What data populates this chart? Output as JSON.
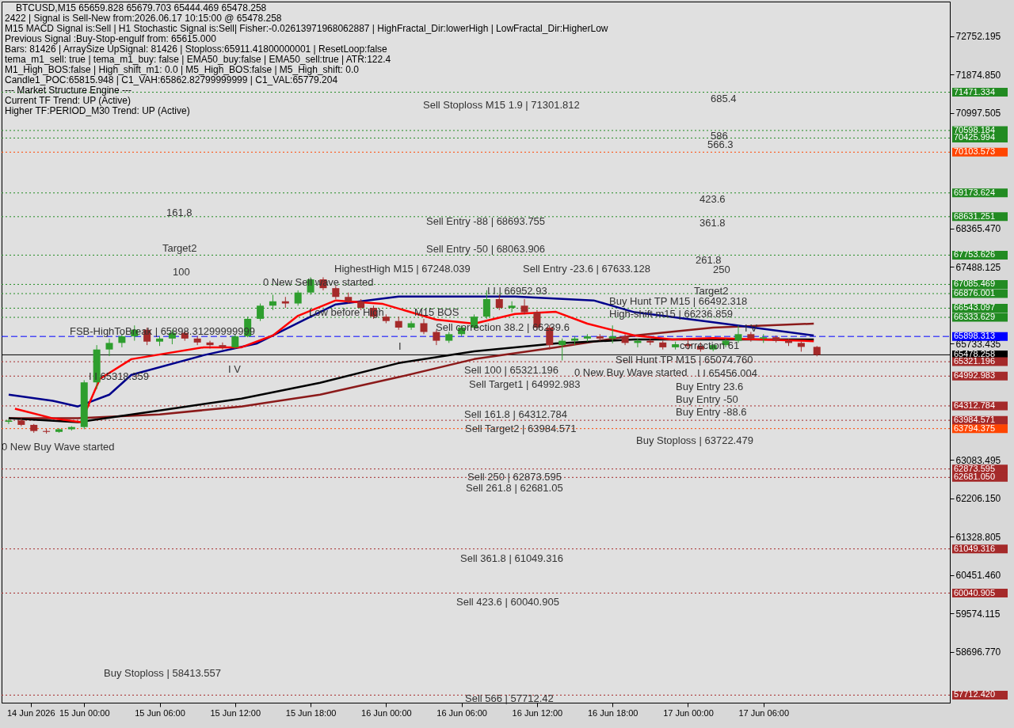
{
  "chart_data": {
    "type": "candlestick",
    "title": "BTCUSD,M15  65659.828 65679.703 65444.469 65478.258",
    "annotations": [
      "2422 | Signal is Sell-New from:2026.06.17 10:15:00 @ 65478.258",
      "M15 MACD Signal is:Sell | H1 Stochastic Signal is:Sell| Fisher:-0.02613971968062887 | HighFractal_Dir:lowerHigh | LowFractal_Dir:HigherLow",
      "Previous Signal :Buy-Stop-engulf from: 65615.000",
      "Bars: 81426 | ArraySize UpSignal: 81426 | Stoploss:65911.41800000001 | ResetLoop:false",
      "tema_m1_sell: true | tema_m1_buy: false | EMA50_buy:false | EMA50_sell:true | ATR:122.4",
      "M1_High_BOS:false | High_shift_m1: 0.0 | M5_High_BOS:false | M5_High_shift: 0.0",
      "Candle1_POC:65815.948 | C1_VAH:65862.82799999999 | C1_VAL:65779.204",
      "--- Market Structure Engine ---",
      "Current TF Trend: UP (Active)",
      "Higher TF:PERIOD_M30 Trend: UP (Active)",
      "Sell Stoploss M15 1.9 | 71301.812",
      "685.4",
      "586",
      "566.3",
      "423.6",
      "361.8",
      "261.8",
      "250",
      "Target2",
      "161.8",
      "Target2",
      "100",
      "Sell Entry -88 | 68693.755",
      "Sell Entry -50 | 68063.906",
      "HighestHigh  M15 | 67248.039",
      "Sell Entry -23.6 | 67633.128",
      "0 New Sell wave started",
      "I I | 66952.93",
      "Low before High",
      "M15 BOS",
      "Sell correction 38.2 | 66239.6",
      "FSB-HighToBreak | 65898.31299999999",
      "I I 65318.359",
      "I V",
      "I",
      "I V",
      "0 New Buy Wave started",
      "Buy Hunt TP M15 | 66492.318",
      "High-shift m15 | 66236.859",
      "correction 61",
      "Sell 100 | 65321.196",
      "0 New Buy Wave started",
      "Sell Target1 | 64992.983",
      "Sell Hunt TP M15 | 65074.760",
      "I I 65456.004",
      "Buy Entry 23.6",
      "Buy Entry -50",
      "Buy Entry -88.6",
      "Buy Stoploss | 63722.479",
      "Sell 161.8 | 64312.784",
      "Sell Target2 | 63984.571",
      "Sell 250 | 62873.595",
      "Sell 261.8 | 62681.05",
      "Sell 361.8 | 61049.316",
      "Sell 423.6 | 60040.905",
      "Buy Stoploss | 58413.557",
      "Sell 566 | 57712.42"
    ],
    "xlim": [
      "2026-06-14T17:45",
      "2026-06-17T20:30"
    ],
    "xticks": [
      {
        "value": "2026-06-14T19:45",
        "label": "14 Jun 2026"
      },
      {
        "value": "2026-06-15T00:00",
        "label": "15 Jun 00:00"
      },
      {
        "value": "2026-06-15T06:00",
        "label": "15 Jun 06:00"
      },
      {
        "value": "2026-06-15T12:00",
        "label": "15 Jun 12:00"
      },
      {
        "value": "2026-06-15T18:00",
        "label": "15 Jun 18:00"
      },
      {
        "value": "2026-06-16T00:00",
        "label": "16 Jun 00:00"
      },
      {
        "value": "2026-06-16T06:00",
        "label": "16 Jun 06:00"
      },
      {
        "value": "2026-06-16T12:00",
        "label": "16 Jun 12:00"
      },
      {
        "value": "2026-06-16T18:00",
        "label": "16 Jun 18:00"
      },
      {
        "value": "2026-06-17T00:00",
        "label": "17 Jun 00:00"
      },
      {
        "value": "2026-06-17T06:00",
        "label": "17 Jun 06:00"
      }
    ],
    "ylim": [
      57540,
      73540
    ],
    "yticks": [
      {
        "value": 72752.195,
        "label": "72752.195"
      },
      {
        "value": 71874.85,
        "label": "71874.850"
      },
      {
        "value": 70997.505,
        "label": "70997.505"
      },
      {
        "value": 68365.47,
        "label": "68365.470"
      },
      {
        "value": 67488.125,
        "label": "67488.125"
      },
      {
        "value": 65733.435,
        "label": "65733.435"
      },
      {
        "value": 63083.495,
        "label": "63083.495"
      },
      {
        "value": 62206.15,
        "label": "62206.150"
      },
      {
        "value": 61328.805,
        "label": "61328.805"
      },
      {
        "value": 60451.46,
        "label": "60451.460"
      },
      {
        "value": 59574.115,
        "label": "59574.115"
      },
      {
        "value": 58696.77,
        "label": "58696.770"
      }
    ],
    "grid": false,
    "ref_lines": [
      {
        "axis": "y",
        "value": 71471.334,
        "label": "71471.334",
        "color": "#228b22",
        "line_style": "dotted"
      },
      {
        "axis": "y",
        "value": 70598.184,
        "label": "70598.184",
        "color": "#228b22",
        "line_style": "dotted"
      },
      {
        "axis": "y",
        "value": 70425.994,
        "label": "70425.994",
        "color": "#228b22",
        "line_style": "dotted"
      },
      {
        "axis": "y",
        "value": 70103.573,
        "label": "70103.573",
        "color": "#ff4500",
        "line_style": "dotted"
      },
      {
        "axis": "y",
        "value": 69173.624,
        "label": "69173.624",
        "color": "#228b22",
        "line_style": "dotted"
      },
      {
        "axis": "y",
        "value": 68631.251,
        "label": "68631.251",
        "color": "#228b22",
        "line_style": "dotted"
      },
      {
        "axis": "y",
        "value": 67753.626,
        "label": "67753.626",
        "color": "#228b22",
        "line_style": "dotted"
      },
      {
        "axis": "y",
        "value": 67085.469,
        "label": "67085.469",
        "color": "#228b22",
        "line_style": "dotted"
      },
      {
        "axis": "y",
        "value": 66876.001,
        "label": "66876.001",
        "color": "#228b22",
        "line_style": "dotted"
      },
      {
        "axis": "y",
        "value": 66543.097,
        "label": "66543.097",
        "color": "#228b22",
        "line_style": "dotted"
      },
      {
        "axis": "y",
        "value": 66333.629,
        "label": "66333.629",
        "color": "#228b22",
        "line_style": "dotted"
      },
      {
        "axis": "y",
        "value": 65898.313,
        "label": "65898.313",
        "color": "#0000ff",
        "line_style": "dashed"
      },
      {
        "axis": "y",
        "value": 65478.258,
        "label": "65478.258",
        "color": "#000000",
        "line_style": "solid"
      },
      {
        "axis": "y",
        "value": 65321.196,
        "label": "65321.196",
        "color": "#a52a2a",
        "line_style": "dotted"
      },
      {
        "axis": "y",
        "value": 64992.983,
        "label": "64992.983",
        "color": "#a52a2a",
        "line_style": "dotted"
      },
      {
        "axis": "y",
        "value": 64312.784,
        "label": "64312.784",
        "color": "#a52a2a",
        "line_style": "dotted"
      },
      {
        "axis": "y",
        "value": 63984.571,
        "label": "63984.571",
        "color": "#a52a2a",
        "line_style": "dotted"
      },
      {
        "axis": "y",
        "value": 63794.375,
        "label": "63794.375",
        "color": "#ff4500",
        "line_style": "dotted"
      },
      {
        "axis": "y",
        "value": 62873.595,
        "label": "62873.595",
        "color": "#a52a2a",
        "line_style": "dotted"
      },
      {
        "axis": "y",
        "value": 62681.05,
        "label": "62681.050",
        "color": "#a52a2a",
        "line_style": "dotted"
      },
      {
        "axis": "y",
        "value": 61049.316,
        "label": "61049.316",
        "color": "#a52a2a",
        "line_style": "dotted"
      },
      {
        "axis": "y",
        "value": 60040.905,
        "label": "60040.905",
        "color": "#a52a2a",
        "line_style": "dotted"
      },
      {
        "axis": "y",
        "value": 57712.42,
        "label": "57712.420",
        "color": "#a52a2a",
        "line_style": "dotted"
      }
    ],
    "series": [
      {
        "type": "line",
        "color": "#8b1a1a",
        "line_style": "solid",
        "x": [
          "2026-06-14T18:00",
          "2026-06-14T23:30",
          "2026-06-15T06:00",
          "2026-06-15T12:30",
          "2026-06-15T18:45",
          "2026-06-16T01:00",
          "2026-06-16T07:00",
          "2026-06-16T13:30",
          "2026-06-16T19:45",
          "2026-06-17T02:00",
          "2026-06-17T10:00"
        ],
        "values": [
          64030,
          64030,
          64120,
          64300,
          64570,
          64970,
          65380,
          65650,
          65920,
          66100,
          66190
        ]
      },
      {
        "type": "line",
        "color": "#000000",
        "line_style": "solid",
        "x": [
          "2026-06-14T18:00",
          "2026-06-14T23:30",
          "2026-06-15T06:00",
          "2026-06-15T12:30",
          "2026-06-15T18:45",
          "2026-06-16T01:00",
          "2026-06-16T07:00",
          "2026-06-16T13:30",
          "2026-06-16T19:45",
          "2026-06-17T10:00"
        ],
        "values": [
          64030,
          63940,
          64210,
          64480,
          64840,
          65290,
          65560,
          65740,
          65830,
          65830
        ]
      },
      {
        "type": "line",
        "color": "#00008b",
        "line_style": "solid",
        "x": [
          "2026-06-14T18:00",
          "2026-06-14T21:30",
          "2026-06-14T23:30",
          "2026-06-15T02:00",
          "2026-06-15T03:45",
          "2026-06-15T09:30",
          "2026-06-15T13:45",
          "2026-06-15T17:30",
          "2026-06-15T20:00",
          "2026-06-16T01:00",
          "2026-06-16T10:15",
          "2026-06-16T16:30",
          "2026-06-16T19:45",
          "2026-06-17T02:00",
          "2026-06-17T10:00"
        ],
        "values": [
          64570,
          64430,
          64300,
          64570,
          65020,
          65470,
          65740,
          66280,
          66630,
          66810,
          66810,
          66720,
          66450,
          66220,
          65920
        ]
      },
      {
        "type": "line",
        "color": "#ff0000",
        "line_style": "solid",
        "x": [
          "2026-06-14T18:30",
          "2026-06-14T21:30",
          "2026-06-14T23:45",
          "2026-06-15T01:15",
          "2026-06-15T03:45",
          "2026-06-15T09:30",
          "2026-06-15T12:30",
          "2026-06-15T15:00",
          "2026-06-15T17:00",
          "2026-06-15T20:00",
          "2026-06-15T23:45",
          "2026-06-16T04:00",
          "2026-06-16T07:00",
          "2026-06-16T10:15",
          "2026-06-16T13:30",
          "2026-06-16T16:00",
          "2026-06-16T19:45",
          "2026-06-16T22:45",
          "2026-06-17T02:00",
          "2026-06-17T10:00"
        ],
        "values": [
          64250,
          64030,
          63940,
          64930,
          65380,
          65650,
          65650,
          65920,
          66370,
          66720,
          66640,
          66280,
          66190,
          66410,
          66460,
          66190,
          65920,
          65830,
          65860,
          65790
        ]
      }
    ],
    "x": [
      "2026-06-14T18:00",
      "2026-06-14T19:00",
      "2026-06-14T20:00",
      "2026-06-14T21:00",
      "2026-06-14T22:00",
      "2026-06-14T23:00",
      "2026-06-15T00:00",
      "2026-06-15T01:00",
      "2026-06-15T02:00",
      "2026-06-15T03:00",
      "2026-06-15T04:00",
      "2026-06-15T05:00",
      "2026-06-15T06:00",
      "2026-06-15T07:00",
      "2026-06-15T08:00",
      "2026-06-15T09:00",
      "2026-06-15T10:00",
      "2026-06-15T11:00",
      "2026-06-15T12:00",
      "2026-06-15T13:00",
      "2026-06-15T14:00",
      "2026-06-15T15:00",
      "2026-06-15T16:00",
      "2026-06-15T17:00",
      "2026-06-15T18:00",
      "2026-06-15T19:00",
      "2026-06-15T20:00",
      "2026-06-15T21:00",
      "2026-06-15T22:00",
      "2026-06-15T23:00",
      "2026-06-16T00:00",
      "2026-06-16T01:00",
      "2026-06-16T02:00",
      "2026-06-16T03:00",
      "2026-06-16T04:00",
      "2026-06-16T05:00",
      "2026-06-16T06:00",
      "2026-06-16T07:00",
      "2026-06-16T08:00",
      "2026-06-16T09:00",
      "2026-06-16T10:00",
      "2026-06-16T11:00",
      "2026-06-16T12:00",
      "2026-06-16T13:00",
      "2026-06-16T14:00",
      "2026-06-16T15:00",
      "2026-06-16T16:00",
      "2026-06-16T17:00",
      "2026-06-16T18:00",
      "2026-06-16T19:00",
      "2026-06-16T20:00",
      "2026-06-16T21:00",
      "2026-06-16T22:00",
      "2026-06-16T23:00",
      "2026-06-17T00:00",
      "2026-06-17T01:00",
      "2026-06-17T02:00",
      "2026-06-17T03:00",
      "2026-06-17T04:00",
      "2026-06-17T05:00",
      "2026-06-17T06:00",
      "2026-06-17T07:00",
      "2026-06-17T08:00",
      "2026-06-17T09:00",
      "2026-06-17T10:15"
    ],
    "ohlc": [
      [
        63950,
        64020,
        63900,
        63980
      ],
      [
        63980,
        64030,
        63850,
        63880
      ],
      [
        63880,
        63900,
        63700,
        63740
      ],
      [
        63740,
        63790,
        63680,
        63720
      ],
      [
        63720,
        63800,
        63700,
        63780
      ],
      [
        63780,
        63850,
        63750,
        63830
      ],
      [
        63830,
        64900,
        63780,
        64850
      ],
      [
        64850,
        65700,
        64700,
        65600
      ],
      [
        65600,
        65850,
        65450,
        65750
      ],
      [
        65750,
        65950,
        65650,
        65900
      ],
      [
        65900,
        66150,
        65800,
        66050
      ],
      [
        66050,
        66100,
        65700,
        65780
      ],
      [
        65780,
        65900,
        65680,
        65850
      ],
      [
        65850,
        66050,
        65720,
        65980
      ],
      [
        65980,
        66020,
        65800,
        65850
      ],
      [
        65850,
        65900,
        65700,
        65760
      ],
      [
        65760,
        65800,
        65620,
        65700
      ],
      [
        65700,
        65760,
        65600,
        65650
      ],
      [
        65650,
        65950,
        65620,
        65900
      ],
      [
        65900,
        66350,
        65880,
        66300
      ],
      [
        66300,
        66650,
        66250,
        66600
      ],
      [
        66600,
        66850,
        66500,
        66700
      ],
      [
        66700,
        66800,
        66550,
        66650
      ],
      [
        66650,
        66950,
        66600,
        66900
      ],
      [
        66900,
        67248,
        66850,
        67200
      ],
      [
        67200,
        67248,
        66950,
        67000
      ],
      [
        67000,
        67050,
        66750,
        66800
      ],
      [
        66800,
        66900,
        66650,
        66700
      ],
      [
        66700,
        66750,
        66500,
        66550
      ],
      [
        66550,
        66600,
        66300,
        66350
      ],
      [
        66350,
        66400,
        66200,
        66250
      ],
      [
        66250,
        66350,
        66050,
        66100
      ],
      [
        66100,
        66250,
        66050,
        66200
      ],
      [
        66200,
        66300,
        65950,
        66000
      ],
      [
        66000,
        66050,
        65700,
        65800
      ],
      [
        65800,
        66000,
        65750,
        65950
      ],
      [
        65950,
        66150,
        65900,
        66100
      ],
      [
        66100,
        66400,
        66050,
        66350
      ],
      [
        66350,
        66952,
        66300,
        66750
      ],
      [
        66750,
        66850,
        66500,
        66550
      ],
      [
        66550,
        66700,
        66450,
        66600
      ],
      [
        66600,
        66750,
        66400,
        66450
      ],
      [
        66450,
        66500,
        66050,
        66100
      ],
      [
        66100,
        66150,
        65600,
        65700
      ],
      [
        65700,
        65850,
        65350,
        65800
      ],
      [
        65800,
        65900,
        65700,
        65850
      ],
      [
        65850,
        65950,
        65780,
        65900
      ],
      [
        65900,
        65950,
        65800,
        65850
      ],
      [
        65850,
        66150,
        65740,
        65900
      ],
      [
        65900,
        65950,
        65700,
        65750
      ],
      [
        65750,
        65850,
        65650,
        65800
      ],
      [
        65800,
        65850,
        65700,
        65760
      ],
      [
        65760,
        65800,
        65600,
        65650
      ],
      [
        65650,
        65780,
        65600,
        65720
      ],
      [
        65720,
        65800,
        65600,
        65680
      ],
      [
        65680,
        65760,
        65550,
        65600
      ],
      [
        65600,
        65720,
        65560,
        65700
      ],
      [
        65700,
        65850,
        65650,
        65800
      ],
      [
        65800,
        66150,
        65750,
        65950
      ],
      [
        65950,
        66000,
        65780,
        65850
      ],
      [
        65850,
        65950,
        65750,
        65880
      ],
      [
        65880,
        65920,
        65760,
        65800
      ],
      [
        65800,
        65850,
        65680,
        65750
      ],
      [
        65750,
        65780,
        65550,
        65660
      ],
      [
        65659.828,
        65679.703,
        65444.469,
        65478.258
      ]
    ],
    "colors": [
      "#2e9e2e",
      "#a52a2a",
      "#a52a2a",
      "#a52a2a",
      "#2e9e2e",
      "#2e9e2e",
      "#2e9e2e",
      "#2e9e2e",
      "#2e9e2e",
      "#2e9e2e",
      "#2e9e2e",
      "#a52a2a",
      "#2e9e2e",
      "#2e9e2e",
      "#a52a2a",
      "#a52a2a",
      "#a52a2a",
      "#a52a2a",
      "#2e9e2e",
      "#2e9e2e",
      "#2e9e2e",
      "#2e9e2e",
      "#a52a2a",
      "#2e9e2e",
      "#2e9e2e",
      "#a52a2a",
      "#a52a2a",
      "#a52a2a",
      "#a52a2a",
      "#a52a2a",
      "#a52a2a",
      "#a52a2a",
      "#2e9e2e",
      "#a52a2a",
      "#a52a2a",
      "#2e9e2e",
      "#2e9e2e",
      "#2e9e2e",
      "#2e9e2e",
      "#a52a2a",
      "#2e9e2e",
      "#a52a2a",
      "#a52a2a",
      "#a52a2a",
      "#2e9e2e",
      "#2e9e2e",
      "#2e9e2e",
      "#a52a2a",
      "#2e9e2e",
      "#a52a2a",
      "#2e9e2e",
      "#a52a2a",
      "#a52a2a",
      "#2e9e2e",
      "#a52a2a",
      "#a52a2a",
      "#2e9e2e",
      "#2e9e2e",
      "#2e9e2e",
      "#a52a2a",
      "#2e9e2e",
      "#a52a2a",
      "#a52a2a",
      "#a52a2a",
      "#a52a2a"
    ]
  }
}
